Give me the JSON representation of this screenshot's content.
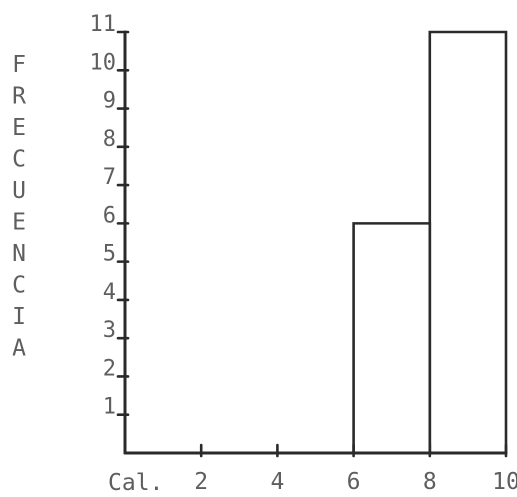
{
  "chart_data": {
    "type": "bar",
    "title": "",
    "xlabel": "Cal.",
    "ylabel": "FRECUENCIA",
    "bins": [
      {
        "x0": 6,
        "x1": 8,
        "value": 6
      },
      {
        "x0": 8,
        "x1": 10,
        "value": 11
      }
    ],
    "x_ticks": [
      {
        "value": 2,
        "label": "2"
      },
      {
        "value": 4,
        "label": "4"
      },
      {
        "value": 6,
        "label": "6"
      },
      {
        "value": 8,
        "label": "8"
      },
      {
        "value": 10,
        "label": "10"
      }
    ],
    "y_ticks": [
      {
        "value": 1,
        "label": "1"
      },
      {
        "value": 2,
        "label": "2"
      },
      {
        "value": 3,
        "label": "3"
      },
      {
        "value": 4,
        "label": "4"
      },
      {
        "value": 5,
        "label": "5"
      },
      {
        "value": 6,
        "label": "6"
      },
      {
        "value": 7,
        "label": "7"
      },
      {
        "value": 8,
        "label": "8"
      },
      {
        "value": 9,
        "label": "9"
      },
      {
        "value": 10,
        "label": "10"
      },
      {
        "value": 11,
        "label": "11"
      }
    ],
    "xlim": [
      0,
      10
    ],
    "ylim": [
      0,
      11
    ],
    "grid": false,
    "legend": "none"
  }
}
